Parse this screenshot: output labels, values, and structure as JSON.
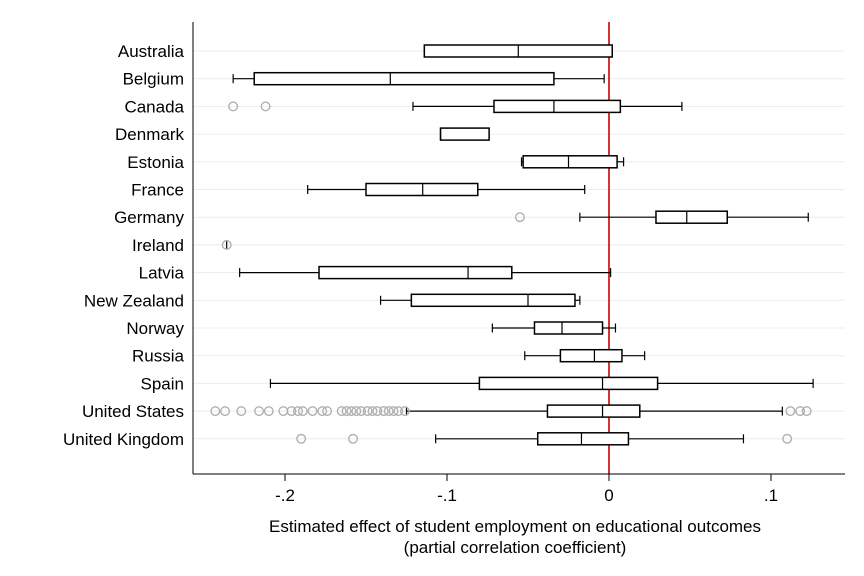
{
  "chart_data": {
    "type": "boxplot",
    "orientation": "horizontal",
    "xlabel_line1": "Estimated effect of student employment on educational outcomes",
    "xlabel_line2": "(partial correlation coefficient)",
    "xlim": [
      -0.26,
      0.145
    ],
    "ticks": [
      {
        "value": -0.2,
        "label": "-.2"
      },
      {
        "value": -0.1,
        "label": "-.1"
      },
      {
        "value": 0,
        "label": "0"
      },
      {
        "value": 0.1,
        "label": ".1"
      }
    ],
    "reference_line": {
      "value": 0,
      "color": "#cc0000"
    },
    "grid": true,
    "categories": [
      {
        "name": "Australia",
        "wlo": -0.114,
        "q1": -0.114,
        "median": -0.056,
        "q3": 0.002,
        "whi": 0.002,
        "outliers": []
      },
      {
        "name": "Belgium",
        "wlo": -0.232,
        "q1": -0.219,
        "median": -0.135,
        "q3": -0.034,
        "whi": -0.003,
        "outliers": []
      },
      {
        "name": "Canada",
        "wlo": -0.121,
        "q1": -0.071,
        "median": -0.034,
        "q3": 0.007,
        "whi": 0.045,
        "outliers": [
          -0.232,
          -0.212
        ]
      },
      {
        "name": "Denmark",
        "wlo": -0.104,
        "q1": -0.104,
        "median": -0.104,
        "q3": -0.074,
        "whi": -0.074,
        "outliers": []
      },
      {
        "name": "Estonia",
        "wlo": -0.054,
        "q1": -0.053,
        "median": -0.025,
        "q3": 0.005,
        "whi": 0.009,
        "outliers": []
      },
      {
        "name": "France",
        "wlo": -0.186,
        "q1": -0.15,
        "median": -0.115,
        "q3": -0.081,
        "whi": -0.015,
        "outliers": []
      },
      {
        "name": "Germany",
        "wlo": -0.018,
        "q1": 0.029,
        "median": 0.048,
        "q3": 0.073,
        "whi": 0.123,
        "outliers": [
          -0.055
        ]
      },
      {
        "name": "Ireland",
        "wlo": -0.236,
        "q1": -0.236,
        "median": -0.236,
        "q3": -0.236,
        "whi": -0.236,
        "outliers": [
          -0.236
        ]
      },
      {
        "name": "Latvia",
        "wlo": -0.228,
        "q1": -0.179,
        "median": -0.087,
        "q3": -0.06,
        "whi": 0.001,
        "outliers": []
      },
      {
        "name": "New Zealand",
        "wlo": -0.141,
        "q1": -0.122,
        "median": -0.05,
        "q3": -0.021,
        "whi": -0.018,
        "outliers": []
      },
      {
        "name": "Norway",
        "wlo": -0.072,
        "q1": -0.046,
        "median": -0.029,
        "q3": -0.004,
        "whi": 0.004,
        "outliers": []
      },
      {
        "name": "Russia",
        "wlo": -0.052,
        "q1": -0.03,
        "median": -0.009,
        "q3": 0.008,
        "whi": 0.022,
        "outliers": []
      },
      {
        "name": "Spain",
        "wlo": -0.209,
        "q1": -0.08,
        "median": -0.004,
        "q3": 0.03,
        "whi": 0.126,
        "outliers": []
      },
      {
        "name": "United States",
        "wlo": -0.125,
        "q1": -0.038,
        "median": -0.004,
        "q3": 0.019,
        "whi": 0.107,
        "outliers": [
          -0.243,
          -0.237,
          -0.227,
          -0.216,
          -0.21,
          -0.201,
          -0.196,
          -0.192,
          -0.189,
          -0.183,
          -0.177,
          -0.174,
          -0.165,
          -0.162,
          -0.159,
          -0.156,
          -0.153,
          -0.149,
          -0.146,
          -0.143,
          -0.139,
          -0.136,
          -0.133,
          -0.13,
          -0.126,
          0.112,
          0.118,
          0.122
        ]
      },
      {
        "name": "United Kingdom",
        "wlo": -0.107,
        "q1": -0.044,
        "median": -0.017,
        "q3": 0.012,
        "whi": 0.083,
        "outliers": [
          -0.19,
          -0.158,
          0.11
        ]
      }
    ]
  }
}
